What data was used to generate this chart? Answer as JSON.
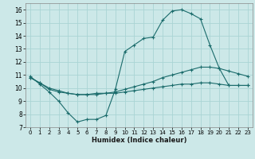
{
  "xlabel": "Humidex (Indice chaleur)",
  "bg_color": "#cce8e8",
  "line_color": "#1a6b6b",
  "grid_color": "#aad4d4",
  "line1_x": [
    0,
    1,
    2,
    3,
    4,
    5,
    6,
    7,
    8,
    9,
    10,
    11,
    12,
    13,
    14,
    15,
    16,
    17,
    18,
    19,
    20,
    21,
    22,
    23
  ],
  "line1_y": [
    10.9,
    10.3,
    9.7,
    9.0,
    8.1,
    7.4,
    7.6,
    7.6,
    7.9,
    9.9,
    12.8,
    13.3,
    13.8,
    13.9,
    15.2,
    15.9,
    16.0,
    15.7,
    15.3,
    13.3,
    11.5,
    10.2,
    10.2,
    10.2
  ],
  "line2_x": [
    0,
    1,
    2,
    3,
    4,
    5,
    6,
    7,
    8,
    9,
    10,
    11,
    12,
    13,
    14,
    15,
    16,
    17,
    18,
    19,
    20,
    21,
    22,
    23
  ],
  "line2_y": [
    10.8,
    10.4,
    10.0,
    9.8,
    9.6,
    9.5,
    9.5,
    9.6,
    9.6,
    9.7,
    9.9,
    10.1,
    10.3,
    10.5,
    10.8,
    11.0,
    11.2,
    11.4,
    11.6,
    11.6,
    11.5,
    11.3,
    11.1,
    10.9
  ],
  "line3_x": [
    0,
    1,
    2,
    3,
    4,
    5,
    6,
    7,
    8,
    9,
    10,
    11,
    12,
    13,
    14,
    15,
    16,
    17,
    18,
    19,
    20,
    21,
    22,
    23
  ],
  "line3_y": [
    10.8,
    10.4,
    9.9,
    9.7,
    9.6,
    9.5,
    9.5,
    9.5,
    9.6,
    9.6,
    9.7,
    9.8,
    9.9,
    10.0,
    10.1,
    10.2,
    10.3,
    10.3,
    10.4,
    10.4,
    10.3,
    10.2,
    10.2,
    10.2
  ],
  "ylim": [
    7,
    16.5
  ],
  "xlim": [
    -0.5,
    23.5
  ],
  "yticks": [
    7,
    8,
    9,
    10,
    11,
    12,
    13,
    14,
    15,
    16
  ],
  "xticks": [
    0,
    1,
    2,
    3,
    4,
    5,
    6,
    7,
    8,
    9,
    10,
    11,
    12,
    13,
    14,
    15,
    16,
    17,
    18,
    19,
    20,
    21,
    22,
    23
  ]
}
